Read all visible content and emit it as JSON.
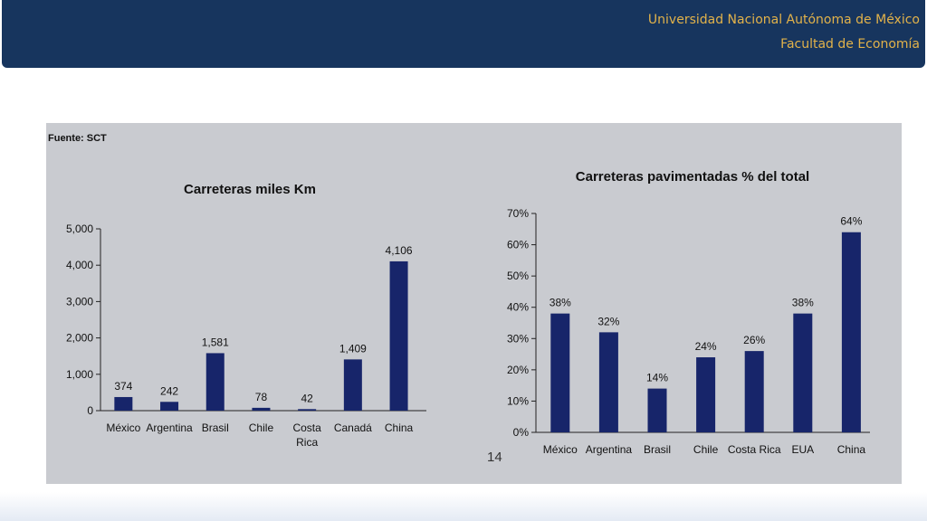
{
  "header": {
    "institution": "Universidad Nacional Autónoma de México",
    "faculty": "Facultad de Economía"
  },
  "figure": {
    "source_note": "Fuente: SCT",
    "page_number": "14"
  },
  "colors": {
    "header_bg": "#17355e",
    "header_text": "#e2b24a",
    "panel_bg": "#c9cbd0",
    "bar": "#17256a"
  },
  "chart_data": [
    {
      "type": "bar",
      "title": "Carreteras miles Km",
      "categories": [
        "México",
        "Argentina",
        "Brasil",
        "Chile",
        "Costa Rica",
        "Canadá",
        "China"
      ],
      "values": [
        374,
        242,
        1581,
        78,
        42,
        1409,
        4106
      ],
      "value_labels": [
        "374",
        "242",
        "1,581",
        "78",
        "42",
        "1,409",
        "4,106"
      ],
      "yticks": [
        "0",
        "1,000",
        "2,000",
        "3,000",
        "4,000",
        "5,000"
      ],
      "ylim": [
        0,
        5000
      ],
      "xlabel": "",
      "ylabel": "",
      "grid": false
    },
    {
      "type": "bar",
      "title": "Carreteras pavimentadas % del total",
      "categories": [
        "México",
        "Argentina",
        "Brasil",
        "Chile",
        "Costa Rica",
        "EUA",
        "China"
      ],
      "values": [
        38,
        32,
        14,
        24,
        26,
        38,
        64
      ],
      "value_labels": [
        "38%",
        "32%",
        "14%",
        "24%",
        "26%",
        "38%",
        "64%"
      ],
      "yticks": [
        "0%",
        "10%",
        "20%",
        "30%",
        "40%",
        "50%",
        "60%",
        "70%"
      ],
      "ylim": [
        0,
        70
      ],
      "xlabel": "",
      "ylabel": "",
      "grid": false
    }
  ]
}
